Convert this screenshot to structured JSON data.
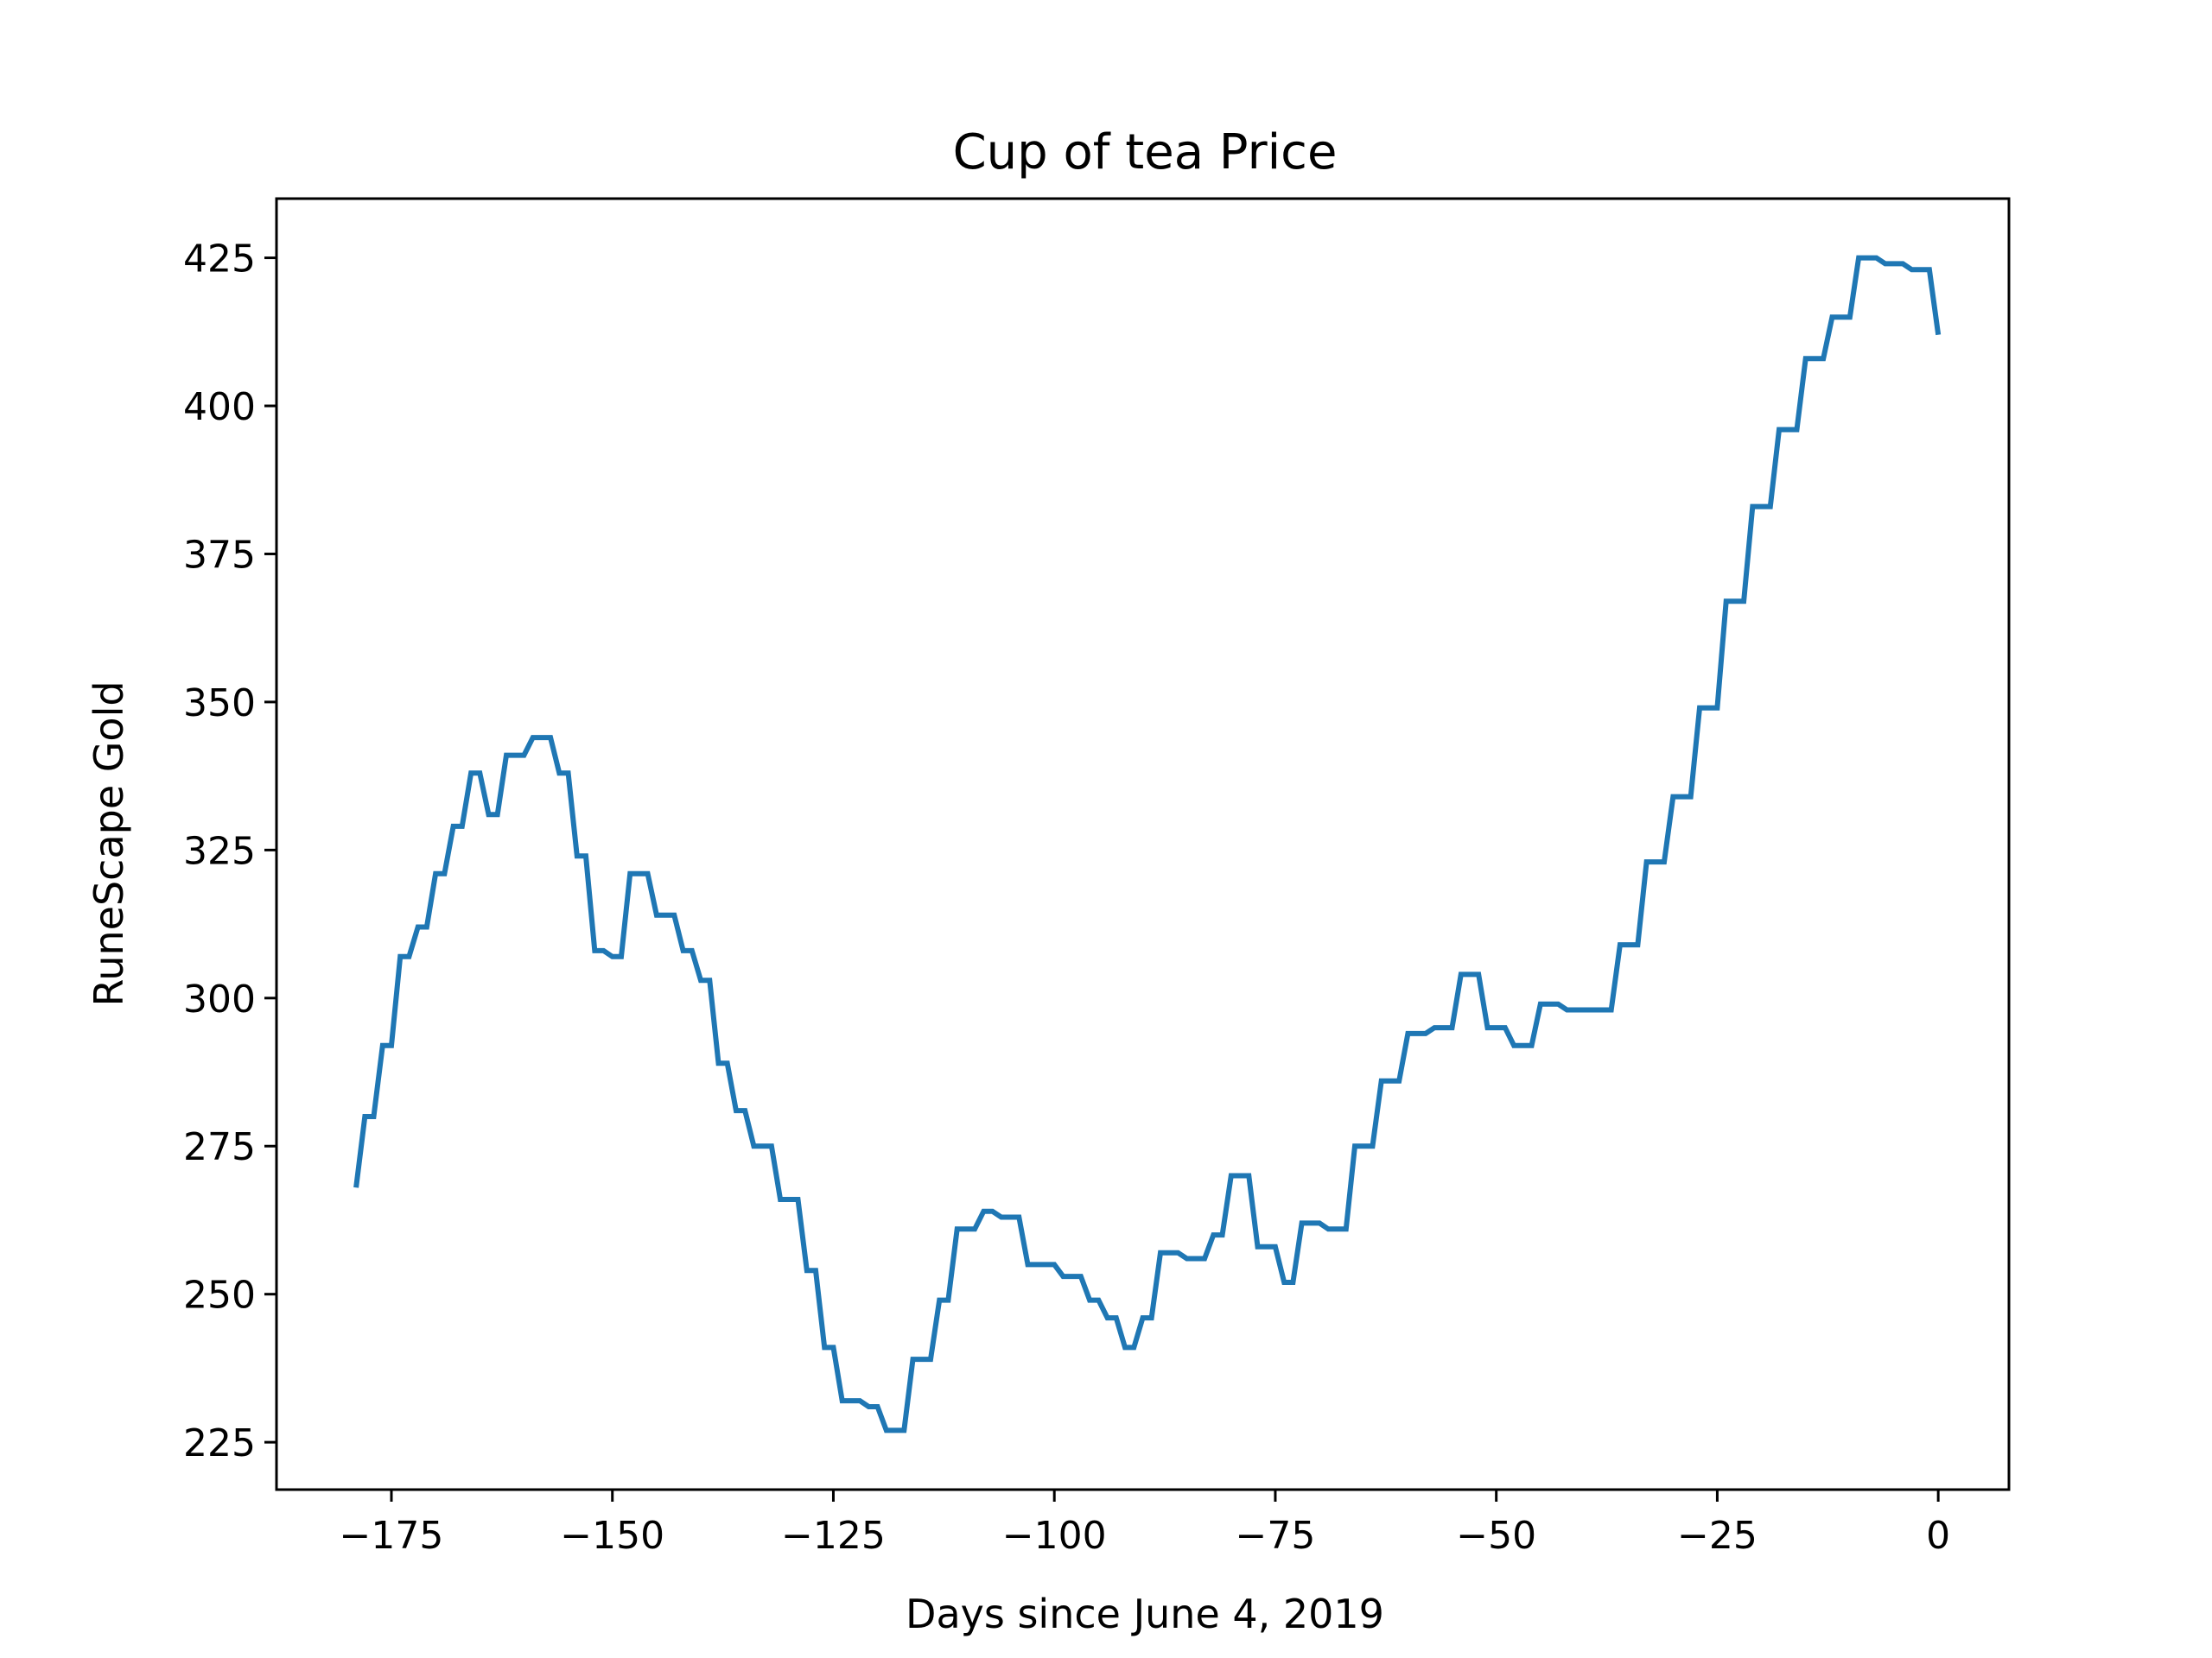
{
  "chart_data": {
    "type": "line",
    "title": "Cup of tea Price",
    "xlabel": "Days since June 4, 2019",
    "ylabel": "RuneScape Gold",
    "xlim": [
      -188,
      8
    ],
    "ylim": [
      217,
      435
    ],
    "xticks": [
      -175,
      -150,
      -125,
      -100,
      -75,
      -50,
      -25,
      0
    ],
    "xtick_labels": [
      "−175",
      "−150",
      "−125",
      "−100",
      "−75",
      "−50",
      "−25",
      "0"
    ],
    "yticks": [
      225,
      250,
      275,
      300,
      325,
      350,
      375,
      400,
      425
    ],
    "ytick_labels": [
      "225",
      "250",
      "275",
      "300",
      "325",
      "350",
      "375",
      "400",
      "425"
    ],
    "grid": false,
    "series": [
      {
        "color": "#1f77b4",
        "x": [
          -179,
          -178,
          -177,
          -176,
          -175,
          -174,
          -173,
          -172,
          -171,
          -170,
          -169,
          -168,
          -167,
          -166,
          -165,
          -164,
          -163,
          -162,
          -161,
          -160,
          -159,
          -158,
          -157,
          -156,
          -155,
          -154,
          -153,
          -152,
          -151,
          -150,
          -149,
          -148,
          -147,
          -146,
          -145,
          -144,
          -143,
          -142,
          -141,
          -140,
          -139,
          -138,
          -137,
          -136,
          -135,
          -134,
          -133,
          -132,
          -131,
          -130,
          -129,
          -128,
          -127,
          -126,
          -125,
          -124,
          -123,
          -122,
          -121,
          -120,
          -119,
          -118,
          -117,
          -116,
          -115,
          -114,
          -113,
          -112,
          -111,
          -110,
          -109,
          -108,
          -107,
          -106,
          -105,
          -104,
          -103,
          -102,
          -101,
          -100,
          -99,
          -98,
          -97,
          -96,
          -95,
          -94,
          -93,
          -92,
          -91,
          -90,
          -89,
          -88,
          -87,
          -86,
          -85,
          -84,
          -83,
          -82,
          -81,
          -80,
          -79,
          -78,
          -77,
          -76,
          -75,
          -74,
          -73,
          -72,
          -71,
          -70,
          -69,
          -68,
          -67,
          -66,
          -65,
          -64,
          -63,
          -62,
          -61,
          -60,
          -59,
          -58,
          -57,
          -56,
          -55,
          -54,
          -53,
          -52,
          -51,
          -50,
          -49,
          -48,
          -47,
          -46,
          -45,
          -44,
          -43,
          -42,
          -41,
          -40,
          -39,
          -38,
          -37,
          -36,
          -35,
          -34,
          -33,
          -32,
          -31,
          -30,
          -29,
          -28,
          -27,
          -26,
          -25,
          -24,
          -23,
          -22,
          -21,
          -20,
          -19,
          -18,
          -17,
          -16,
          -15,
          -14,
          -13,
          -12,
          -11,
          -10,
          -9,
          -8,
          -7,
          -6,
          -5,
          -4,
          -3,
          -2,
          -1,
          0
        ],
        "y": [
          268,
          280,
          280,
          292,
          292,
          307,
          307,
          312,
          312,
          321,
          321,
          329,
          329,
          338,
          338,
          331,
          331,
          341,
          341,
          341,
          344,
          344,
          344,
          338,
          338,
          324,
          324,
          308,
          308,
          307,
          307,
          321,
          321,
          321,
          314,
          314,
          314,
          308,
          308,
          303,
          303,
          289,
          289,
          281,
          281,
          275,
          275,
          275,
          266,
          266,
          266,
          254,
          254,
          241,
          241,
          232,
          232,
          232,
          231,
          231,
          227,
          227,
          227,
          239,
          239,
          239,
          249,
          249,
          261,
          261,
          261,
          264,
          264,
          263,
          263,
          263,
          255,
          255,
          255,
          255,
          253,
          253,
          253,
          249,
          249,
          246,
          246,
          241,
          241,
          246,
          246,
          257,
          257,
          257,
          256,
          256,
          256,
          260,
          260,
          270,
          270,
          270,
          258,
          258,
          258,
          252,
          252,
          262,
          262,
          262,
          261,
          261,
          261,
          275,
          275,
          275,
          286,
          286,
          286,
          294,
          294,
          294,
          295,
          295,
          295,
          304,
          304,
          304,
          295,
          295,
          295,
          292,
          292,
          292,
          299,
          299,
          299,
          298,
          298,
          298,
          298,
          298,
          298,
          309,
          309,
          309,
          323,
          323,
          323,
          334,
          334,
          334,
          349,
          349,
          349,
          367,
          367,
          367,
          383,
          383,
          383,
          396,
          396,
          396,
          408,
          408,
          408,
          415,
          415,
          415,
          425,
          425,
          425,
          424,
          424,
          424,
          423,
          423,
          423,
          412
        ],
        "line_width": 6
      }
    ]
  }
}
